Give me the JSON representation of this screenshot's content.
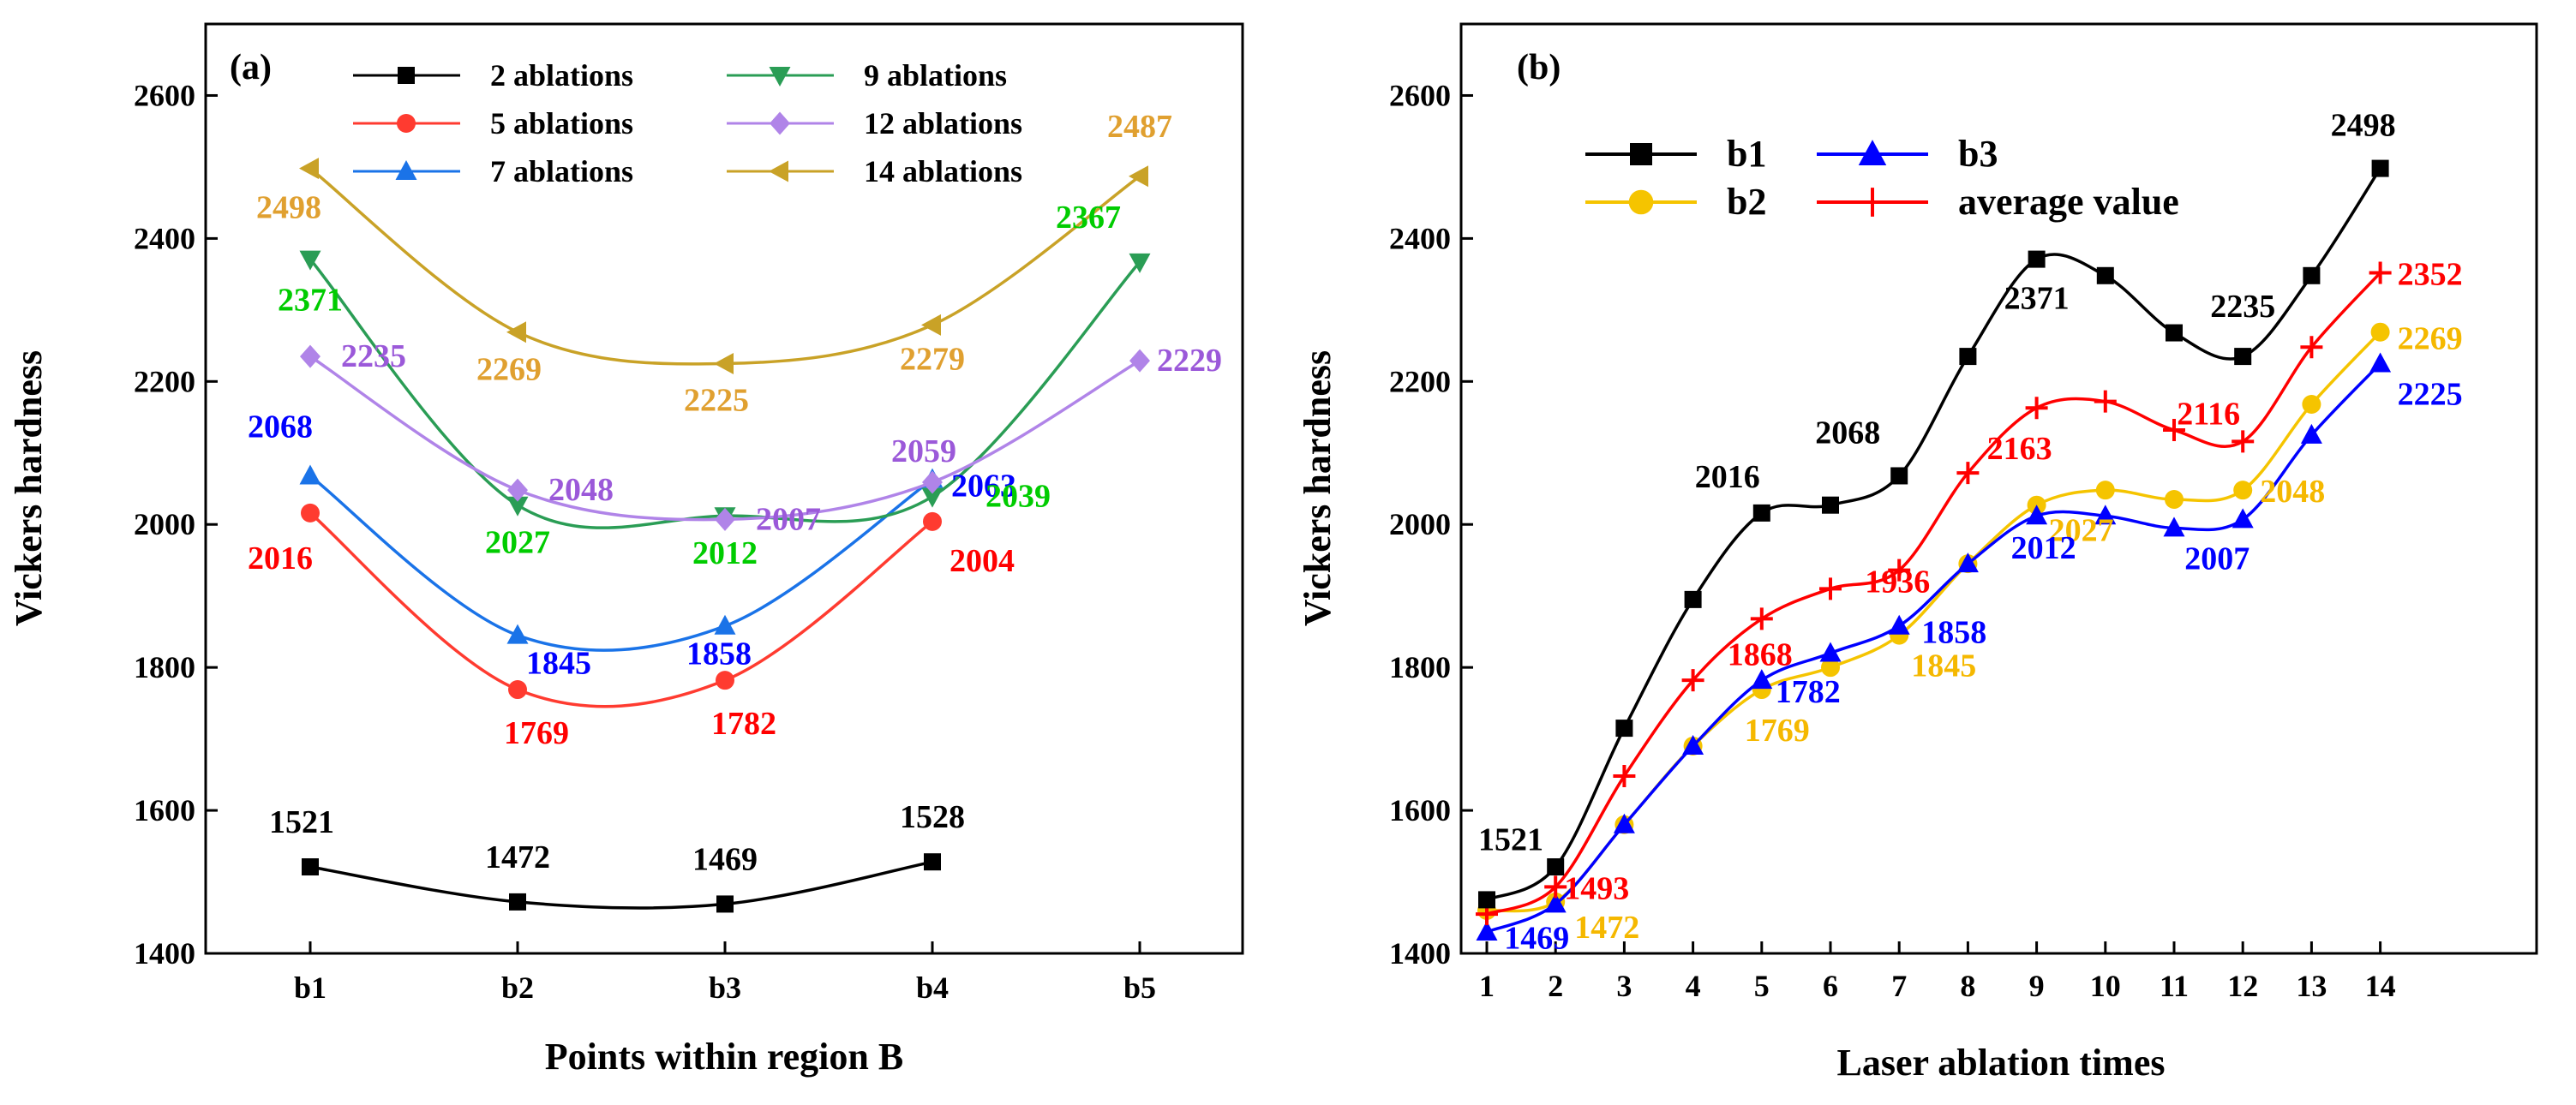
{
  "chart_data": [
    {
      "type": "line",
      "panel_label": "(a)",
      "xlabel": "Points within region B",
      "ylabel": "Vickers hardness",
      "categories": [
        "b1",
        "b2",
        "b3",
        "b4",
        "b5"
      ],
      "ylim": [
        1400,
        2700
      ],
      "yticks": [
        1400,
        1600,
        1800,
        2000,
        2200,
        2400,
        2600
      ],
      "legend_position": "top",
      "series": [
        {
          "name": "2 ablations",
          "color": "#000000",
          "marker": "square",
          "values": [
            1521,
            1472,
            1469,
            1528,
            null
          ],
          "labels": [
            "1521",
            "1472",
            "1469",
            "1528",
            ""
          ],
          "label_color": "#000000"
        },
        {
          "name": "5 ablations",
          "color": "#ff3b30",
          "marker": "circle",
          "values": [
            2016,
            1769,
            1782,
            2004,
            null
          ],
          "labels": [
            "2016",
            "1769",
            "1782",
            "2004",
            ""
          ],
          "label_color": "#ff0000"
        },
        {
          "name": "7 ablations",
          "color": "#1a73e8",
          "marker": "triangle-up",
          "values": [
            2068,
            1845,
            1858,
            2063,
            null
          ],
          "labels": [
            "2068",
            "1845",
            "1858",
            "2063",
            ""
          ],
          "label_color": "#0000ff"
        },
        {
          "name": "9 ablations",
          "color": "#2a9d55",
          "marker": "triangle-down",
          "values": [
            2371,
            2027,
            2012,
            2039,
            2367
          ],
          "labels": [
            "2371",
            "2027",
            "2012",
            "2039",
            "2367"
          ],
          "label_color": "#00cc00"
        },
        {
          "name": "12 ablations",
          "color": "#b084e8",
          "marker": "diamond",
          "values": [
            2235,
            2048,
            2007,
            2059,
            2229
          ],
          "labels": [
            "2235",
            "2048",
            "2007",
            "2059",
            "2229"
          ],
          "label_color": "#9b59d9"
        },
        {
          "name": "14 ablations",
          "color": "#c9a227",
          "marker": "triangle-left",
          "values": [
            2498,
            2269,
            2225,
            2279,
            2487
          ],
          "labels": [
            "2498",
            "2269",
            "2225",
            "2279",
            "2487"
          ],
          "label_color": "#e0a030"
        }
      ]
    },
    {
      "type": "line",
      "panel_label": "(b)",
      "xlabel": "Laser ablation times",
      "ylabel": "Vickers hardness",
      "x": [
        1,
        2,
        3,
        4,
        5,
        6,
        7,
        8,
        9,
        10,
        11,
        12,
        13,
        14
      ],
      "x_highlight": [
        2,
        5,
        7,
        9,
        12,
        14
      ],
      "x_highlight_color": "#ff0000",
      "ylim": [
        1400,
        2700
      ],
      "yticks": [
        1400,
        1600,
        1800,
        2000,
        2200,
        2400,
        2600
      ],
      "legend_position": "top-left",
      "series": [
        {
          "name": "b1",
          "color": "#000000",
          "marker": "square",
          "values": [
            1475,
            1521,
            1715,
            1895,
            2016,
            2027,
            2068,
            2235,
            2371,
            2348,
            2268,
            2235,
            2348,
            2498
          ],
          "label_color": "#000000"
        },
        {
          "name": "b2",
          "color": "#f5c400",
          "marker": "circle",
          "values": [
            1460,
            1472,
            1580,
            1690,
            1769,
            1800,
            1845,
            1945,
            2027,
            2048,
            2035,
            2048,
            2168,
            2269
          ],
          "label_color": "#f5b800"
        },
        {
          "name": "b3",
          "color": "#0000ff",
          "marker": "triangle-up",
          "values": [
            1430,
            1469,
            1580,
            1690,
            1782,
            1820,
            1858,
            1945,
            2012,
            2012,
            1995,
            2007,
            2125,
            2225
          ],
          "label_color": "#0000ff"
        },
        {
          "name": "average value",
          "color": "#ff0000",
          "marker": "plus",
          "values": [
            1455,
            1493,
            1648,
            1782,
            1868,
            1910,
            1936,
            2072,
            2163,
            2172,
            2132,
            2116,
            2248,
            2352
          ],
          "label_color": "#ff0000"
        }
      ],
      "annotations": [
        {
          "series": 0,
          "x": 1,
          "text": "1521"
        },
        {
          "series": 0,
          "x": 5,
          "text": "2016"
        },
        {
          "series": 0,
          "x": 7,
          "text": "2068"
        },
        {
          "series": 0,
          "x": 9,
          "text": "2371"
        },
        {
          "series": 0,
          "x": 12,
          "text": "2235"
        },
        {
          "series": 0,
          "x": 14,
          "text": "2498"
        },
        {
          "series": 1,
          "x": 2,
          "text": "1472"
        },
        {
          "series": 1,
          "x": 5,
          "text": "1769"
        },
        {
          "series": 1,
          "x": 7,
          "text": "1845"
        },
        {
          "series": 1,
          "x": 9,
          "text": "2027"
        },
        {
          "series": 1,
          "x": 12,
          "text": "2048"
        },
        {
          "series": 1,
          "x": 14,
          "text": "2269"
        },
        {
          "series": 2,
          "x": 2,
          "text": "1469"
        },
        {
          "series": 2,
          "x": 5,
          "text": "1782"
        },
        {
          "series": 2,
          "x": 7,
          "text": "1858"
        },
        {
          "series": 2,
          "x": 9,
          "text": "2012"
        },
        {
          "series": 2,
          "x": 12,
          "text": "2007"
        },
        {
          "series": 2,
          "x": 14,
          "text": "2225"
        },
        {
          "series": 3,
          "x": 2,
          "text": "1493"
        },
        {
          "series": 3,
          "x": 5,
          "text": "1868"
        },
        {
          "series": 3,
          "x": 7,
          "text": "1936"
        },
        {
          "series": 3,
          "x": 9,
          "text": "2163"
        },
        {
          "series": 3,
          "x": 12,
          "text": "2116"
        },
        {
          "series": 3,
          "x": 14,
          "text": "2352"
        }
      ]
    }
  ]
}
